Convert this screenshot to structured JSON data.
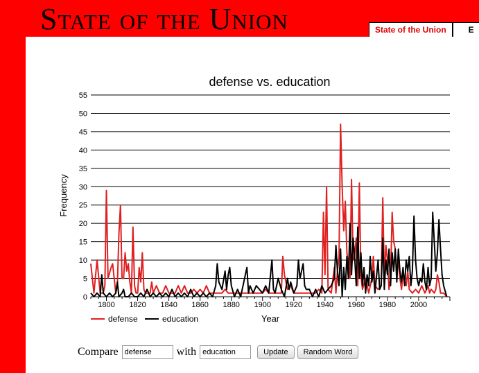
{
  "banner": {
    "title": "State of the Union"
  },
  "tabs": [
    {
      "label": "State of the Union"
    },
    {
      "label": "E"
    }
  ],
  "form": {
    "compare_label": "Compare",
    "with_label": "with",
    "word1": "defense",
    "word2": "education",
    "update_label": "Update",
    "random_label": "Random Word"
  },
  "chart_data": {
    "type": "line",
    "title": "defense vs. education",
    "xlabel": "Year",
    "ylabel": "Frequency",
    "xlim": [
      1790,
      2020
    ],
    "ylim": [
      0,
      55
    ],
    "yticks": [
      0,
      5,
      10,
      15,
      20,
      25,
      30,
      35,
      40,
      45,
      50,
      55
    ],
    "xticks": [
      1800,
      1820,
      1840,
      1860,
      1880,
      1900,
      1920,
      1940,
      1960,
      1980,
      2000
    ],
    "grid": true,
    "legend_position": "bottom-left",
    "series": [
      {
        "name": "defense",
        "color": "#e02020",
        "points": [
          [
            1790,
            9
          ],
          [
            1792,
            1
          ],
          [
            1794,
            10
          ],
          [
            1796,
            1
          ],
          [
            1798,
            1
          ],
          [
            1799,
            3
          ],
          [
            1800,
            29
          ],
          [
            1801,
            5
          ],
          [
            1803,
            8
          ],
          [
            1804,
            9
          ],
          [
            1806,
            1
          ],
          [
            1807,
            3
          ],
          [
            1808,
            17
          ],
          [
            1809,
            25
          ],
          [
            1810,
            5
          ],
          [
            1811,
            5
          ],
          [
            1812,
            12
          ],
          [
            1813,
            7
          ],
          [
            1814,
            9
          ],
          [
            1815,
            4
          ],
          [
            1816,
            1
          ],
          [
            1817,
            19
          ],
          [
            1818,
            3
          ],
          [
            1819,
            1
          ],
          [
            1820,
            1
          ],
          [
            1821,
            8
          ],
          [
            1822,
            4
          ],
          [
            1823,
            12
          ],
          [
            1824,
            2
          ],
          [
            1825,
            1
          ],
          [
            1826,
            1
          ],
          [
            1828,
            1
          ],
          [
            1829,
            4
          ],
          [
            1830,
            1
          ],
          [
            1832,
            3
          ],
          [
            1834,
            1
          ],
          [
            1836,
            1
          ],
          [
            1838,
            3
          ],
          [
            1840,
            1
          ],
          [
            1842,
            1
          ],
          [
            1844,
            1
          ],
          [
            1846,
            3
          ],
          [
            1848,
            1
          ],
          [
            1850,
            3
          ],
          [
            1852,
            1
          ],
          [
            1854,
            1
          ],
          [
            1856,
            2
          ],
          [
            1858,
            1
          ],
          [
            1860,
            2
          ],
          [
            1862,
            1
          ],
          [
            1864,
            3
          ],
          [
            1866,
            1
          ],
          [
            1868,
            1
          ],
          [
            1870,
            1
          ],
          [
            1872,
            1
          ],
          [
            1874,
            1
          ],
          [
            1876,
            2
          ],
          [
            1878,
            1
          ],
          [
            1880,
            1
          ],
          [
            1882,
            1
          ],
          [
            1884,
            1
          ],
          [
            1886,
            1
          ],
          [
            1888,
            1
          ],
          [
            1890,
            1
          ],
          [
            1892,
            1
          ],
          [
            1894,
            1
          ],
          [
            1896,
            1
          ],
          [
            1898,
            1
          ],
          [
            1900,
            1
          ],
          [
            1902,
            2
          ],
          [
            1904,
            1
          ],
          [
            1906,
            1
          ],
          [
            1908,
            1
          ],
          [
            1910,
            1
          ],
          [
            1912,
            1
          ],
          [
            1913,
            11
          ],
          [
            1914,
            6
          ],
          [
            1916,
            2
          ],
          [
            1918,
            3
          ],
          [
            1920,
            1
          ],
          [
            1922,
            1
          ],
          [
            1924,
            1
          ],
          [
            1926,
            1
          ],
          [
            1928,
            1
          ],
          [
            1930,
            1
          ],
          [
            1932,
            1
          ],
          [
            1934,
            1
          ],
          [
            1936,
            2
          ],
          [
            1938,
            1
          ],
          [
            1939,
            23
          ],
          [
            1940,
            6
          ],
          [
            1941,
            30
          ],
          [
            1942,
            2
          ],
          [
            1944,
            1
          ],
          [
            1946,
            8
          ],
          [
            1947,
            1
          ],
          [
            1948,
            7
          ],
          [
            1949,
            11
          ],
          [
            1950,
            47
          ],
          [
            1951,
            30
          ],
          [
            1952,
            18
          ],
          [
            1953,
            26
          ],
          [
            1954,
            12
          ],
          [
            1956,
            5
          ],
          [
            1957,
            32
          ],
          [
            1958,
            10
          ],
          [
            1959,
            11
          ],
          [
            1960,
            16
          ],
          [
            1961,
            3
          ],
          [
            1962,
            31
          ],
          [
            1963,
            6
          ],
          [
            1964,
            2
          ],
          [
            1966,
            5
          ],
          [
            1968,
            1
          ],
          [
            1970,
            5
          ],
          [
            1971,
            11
          ],
          [
            1972,
            3
          ],
          [
            1974,
            2
          ],
          [
            1976,
            3
          ],
          [
            1977,
            27
          ],
          [
            1978,
            5
          ],
          [
            1979,
            14
          ],
          [
            1980,
            10
          ],
          [
            1981,
            2
          ],
          [
            1982,
            5
          ],
          [
            1983,
            23
          ],
          [
            1984,
            15
          ],
          [
            1985,
            13
          ],
          [
            1986,
            6
          ],
          [
            1987,
            10
          ],
          [
            1988,
            5
          ],
          [
            1989,
            2
          ],
          [
            1990,
            6
          ],
          [
            1992,
            3
          ],
          [
            1993,
            7
          ],
          [
            1994,
            2
          ],
          [
            1996,
            1
          ],
          [
            1998,
            2
          ],
          [
            2000,
            1
          ],
          [
            2002,
            3
          ],
          [
            2004,
            1
          ],
          [
            2006,
            3
          ],
          [
            2007,
            1
          ],
          [
            2008,
            2
          ],
          [
            2010,
            1
          ],
          [
            2011,
            2
          ],
          [
            2012,
            6
          ],
          [
            2013,
            4
          ],
          [
            2014,
            1
          ],
          [
            2016,
            1
          ],
          [
            2018,
            0
          ]
        ]
      },
      {
        "name": "education",
        "color": "#000000",
        "points": [
          [
            1790,
            1
          ],
          [
            1792,
            0
          ],
          [
            1794,
            1
          ],
          [
            1796,
            0
          ],
          [
            1797,
            6
          ],
          [
            1798,
            1
          ],
          [
            1800,
            0
          ],
          [
            1802,
            1
          ],
          [
            1804,
            0
          ],
          [
            1806,
            1
          ],
          [
            1807,
            4
          ],
          [
            1808,
            0
          ],
          [
            1810,
            1
          ],
          [
            1811,
            2
          ],
          [
            1812,
            0
          ],
          [
            1814,
            0
          ],
          [
            1816,
            1
          ],
          [
            1818,
            0
          ],
          [
            1820,
            0
          ],
          [
            1822,
            1
          ],
          [
            1824,
            0
          ],
          [
            1826,
            2
          ],
          [
            1828,
            0
          ],
          [
            1830,
            1
          ],
          [
            1832,
            0
          ],
          [
            1834,
            1
          ],
          [
            1836,
            0
          ],
          [
            1838,
            1
          ],
          [
            1840,
            0
          ],
          [
            1842,
            2
          ],
          [
            1844,
            0
          ],
          [
            1846,
            1
          ],
          [
            1848,
            0
          ],
          [
            1850,
            1
          ],
          [
            1852,
            0
          ],
          [
            1854,
            2
          ],
          [
            1856,
            0
          ],
          [
            1858,
            1
          ],
          [
            1860,
            0
          ],
          [
            1862,
            1
          ],
          [
            1864,
            0
          ],
          [
            1866,
            1
          ],
          [
            1868,
            0
          ],
          [
            1870,
            3
          ],
          [
            1871,
            9
          ],
          [
            1872,
            4
          ],
          [
            1874,
            2
          ],
          [
            1876,
            7
          ],
          [
            1877,
            2
          ],
          [
            1878,
            6
          ],
          [
            1879,
            8
          ],
          [
            1880,
            3
          ],
          [
            1882,
            0
          ],
          [
            1884,
            2
          ],
          [
            1886,
            0
          ],
          [
            1888,
            4
          ],
          [
            1890,
            8
          ],
          [
            1891,
            1
          ],
          [
            1892,
            3
          ],
          [
            1894,
            1
          ],
          [
            1896,
            3
          ],
          [
            1898,
            2
          ],
          [
            1900,
            1
          ],
          [
            1902,
            3
          ],
          [
            1904,
            1
          ],
          [
            1906,
            10
          ],
          [
            1907,
            2
          ],
          [
            1908,
            1
          ],
          [
            1910,
            5
          ],
          [
            1912,
            2
          ],
          [
            1914,
            0
          ],
          [
            1916,
            5
          ],
          [
            1917,
            2
          ],
          [
            1918,
            4
          ],
          [
            1920,
            1
          ],
          [
            1922,
            3
          ],
          [
            1923,
            10
          ],
          [
            1924,
            5
          ],
          [
            1926,
            9
          ],
          [
            1927,
            3
          ],
          [
            1928,
            2
          ],
          [
            1930,
            2
          ],
          [
            1932,
            0
          ],
          [
            1934,
            2
          ],
          [
            1936,
            0
          ],
          [
            1938,
            3
          ],
          [
            1940,
            1
          ],
          [
            1942,
            2
          ],
          [
            1944,
            3
          ],
          [
            1946,
            5
          ],
          [
            1947,
            14
          ],
          [
            1948,
            7
          ],
          [
            1949,
            3
          ],
          [
            1950,
            13
          ],
          [
            1951,
            0
          ],
          [
            1952,
            8
          ],
          [
            1953,
            2
          ],
          [
            1954,
            11
          ],
          [
            1955,
            5
          ],
          [
            1956,
            20
          ],
          [
            1957,
            6
          ],
          [
            1958,
            16
          ],
          [
            1959,
            11
          ],
          [
            1960,
            3
          ],
          [
            1961,
            19
          ],
          [
            1962,
            5
          ],
          [
            1963,
            12
          ],
          [
            1964,
            3
          ],
          [
            1965,
            8
          ],
          [
            1966,
            1
          ],
          [
            1967,
            6
          ],
          [
            1968,
            3
          ],
          [
            1969,
            11
          ],
          [
            1970,
            4
          ],
          [
            1971,
            7
          ],
          [
            1972,
            1
          ],
          [
            1974,
            10
          ],
          [
            1975,
            2
          ],
          [
            1976,
            3
          ],
          [
            1977,
            16
          ],
          [
            1978,
            2
          ],
          [
            1979,
            10
          ],
          [
            1980,
            6
          ],
          [
            1981,
            13
          ],
          [
            1982,
            3
          ],
          [
            1983,
            12
          ],
          [
            1984,
            7
          ],
          [
            1985,
            13
          ],
          [
            1986,
            4
          ],
          [
            1987,
            13
          ],
          [
            1988,
            7
          ],
          [
            1989,
            4
          ],
          [
            1990,
            8
          ],
          [
            1991,
            3
          ],
          [
            1992,
            10
          ],
          [
            1993,
            7
          ],
          [
            1994,
            11
          ],
          [
            1995,
            3
          ],
          [
            1996,
            7
          ],
          [
            1997,
            22
          ],
          [
            1998,
            10
          ],
          [
            1999,
            5
          ],
          [
            2000,
            3
          ],
          [
            2001,
            5
          ],
          [
            2002,
            4
          ],
          [
            2003,
            9
          ],
          [
            2004,
            4
          ],
          [
            2005,
            2
          ],
          [
            2006,
            8
          ],
          [
            2007,
            3
          ],
          [
            2008,
            5
          ],
          [
            2009,
            23
          ],
          [
            2010,
            15
          ],
          [
            2011,
            7
          ],
          [
            2012,
            12
          ],
          [
            2013,
            21
          ],
          [
            2014,
            13
          ],
          [
            2015,
            6
          ],
          [
            2016,
            3
          ],
          [
            2018,
            0
          ]
        ]
      }
    ]
  }
}
